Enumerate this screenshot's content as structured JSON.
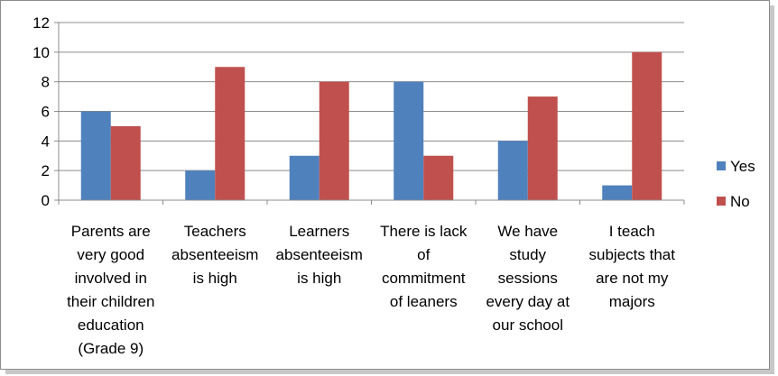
{
  "chart_data": {
    "type": "bar",
    "title": "",
    "xlabel": "",
    "ylabel": "",
    "ylim": [
      0,
      12
    ],
    "yticks": [
      0,
      2,
      4,
      6,
      8,
      10,
      12
    ],
    "grid": true,
    "legend_position": "right",
    "categories": [
      [
        "Parents are",
        "very good",
        "involved in",
        "their children",
        "education",
        "(Grade 9)"
      ],
      [
        "Teachers",
        "absenteeism",
        "is high"
      ],
      [
        "Learners",
        "absenteeism",
        "is high"
      ],
      [
        "There is lack",
        "of",
        "commitment",
        "of leaners"
      ],
      [
        "We have",
        "study",
        "sessions",
        "every day at",
        "our school"
      ],
      [
        "I teach",
        "subjects that",
        "are not my",
        "majors"
      ]
    ],
    "series": [
      {
        "name": "Yes",
        "color": "#4f81bd",
        "values": [
          6,
          2,
          3,
          8,
          4,
          1
        ]
      },
      {
        "name": "No",
        "color": "#c0504d",
        "values": [
          5,
          9,
          8,
          3,
          7,
          10
        ]
      }
    ]
  }
}
